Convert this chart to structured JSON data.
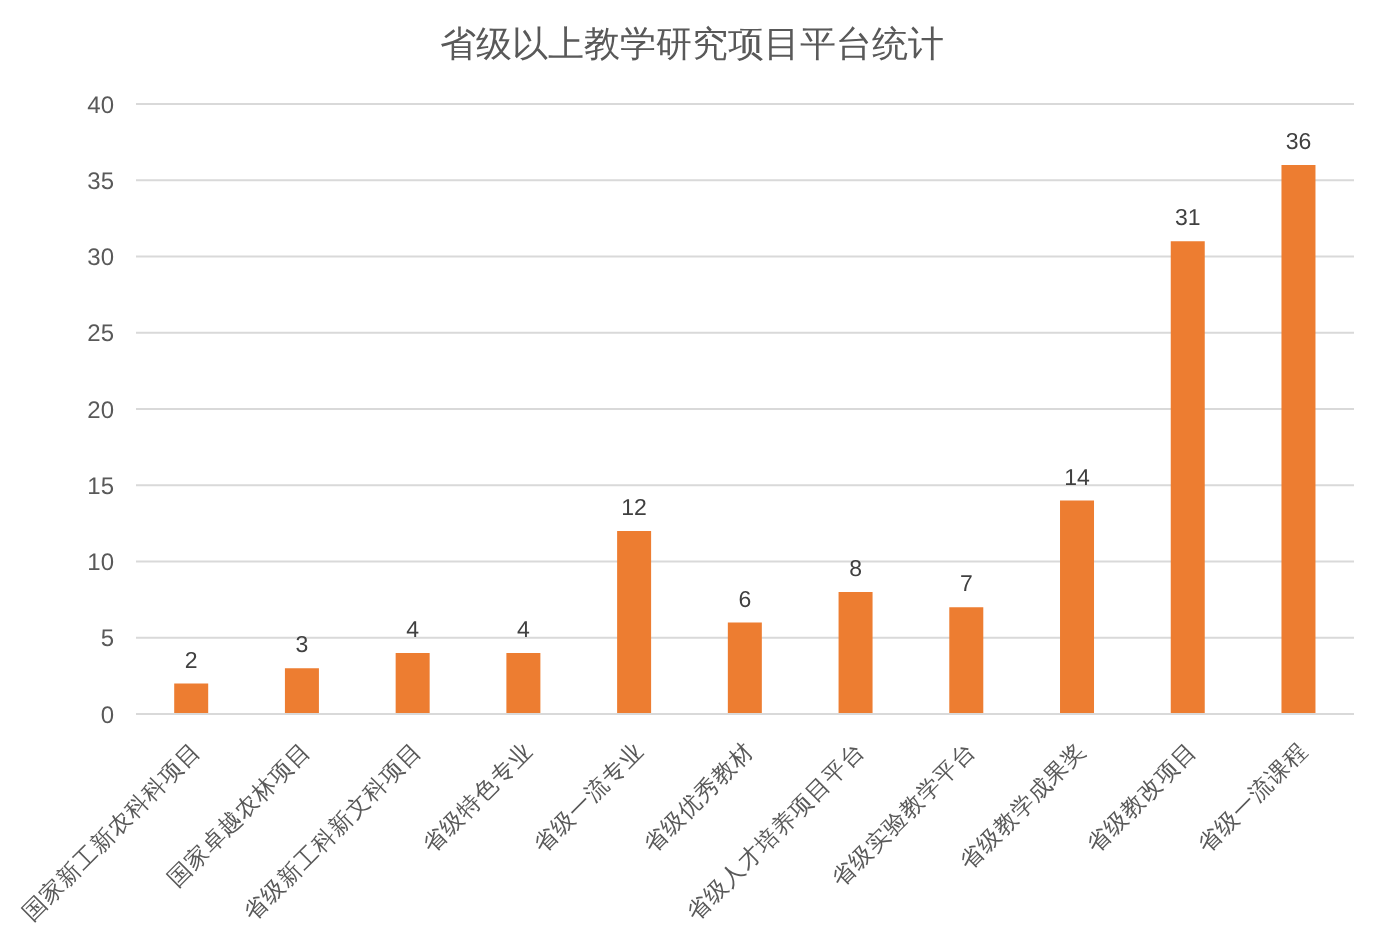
{
  "chart_data": {
    "type": "bar",
    "title": "省级以上教学研究项目平台统计",
    "categories": [
      "国家新工新农科科项目",
      "国家卓越农林项目",
      "省级新工科新文科项目",
      "省级特色专业",
      "省级一流专业",
      "省级优秀教材",
      "省级人才培养项目平台",
      "省级实验教学平台",
      "省级教学成果奖",
      "省级教改项目",
      "省级一流课程"
    ],
    "values": [
      2,
      3,
      4,
      4,
      12,
      6,
      8,
      7,
      14,
      31,
      36
    ],
    "color": "#ed7d31",
    "ylim": [
      0,
      40
    ],
    "yticks": [
      0,
      5,
      10,
      15,
      20,
      25,
      30,
      35,
      40
    ],
    "grid": "y",
    "data_labels": true
  }
}
